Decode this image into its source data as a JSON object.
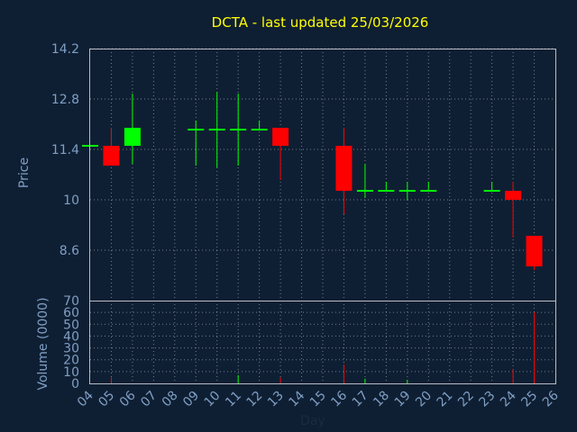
{
  "chart_data": {
    "type": "candlestick",
    "title": "DCTA - last updated 25/03/2026",
    "xlabel": "Day",
    "days": [
      "04",
      "05",
      "06",
      "07",
      "08",
      "09",
      "10",
      "11",
      "12",
      "13",
      "14",
      "15",
      "16",
      "17",
      "18",
      "19",
      "20",
      "21",
      "22",
      "23",
      "24",
      "25",
      "26"
    ],
    "price": {
      "ylabel": "Price",
      "ylim": [
        7.2,
        14.2
      ],
      "ticks": [
        14.2,
        12.8,
        11.4,
        10,
        8.6
      ],
      "tick_labels": [
        "14.2",
        "12.8",
        "11.4",
        "10",
        "8.6"
      ],
      "candles": [
        {
          "day": "04",
          "open": 11.5,
          "high": 11.5,
          "low": 11.5,
          "close": 11.5
        },
        {
          "day": "05",
          "open": 11.5,
          "high": 12.0,
          "low": 10.95,
          "close": 10.95
        },
        {
          "day": "06",
          "open": 11.5,
          "high": 12.95,
          "low": 11.0,
          "close": 12.0
        },
        {
          "day": "09",
          "open": 11.95,
          "high": 12.2,
          "low": 10.95,
          "close": 11.95
        },
        {
          "day": "10",
          "open": 11.95,
          "high": 13.0,
          "low": 10.9,
          "close": 11.95
        },
        {
          "day": "11",
          "open": 11.95,
          "high": 12.95,
          "low": 10.95,
          "close": 11.95
        },
        {
          "day": "12",
          "open": 11.95,
          "high": 12.2,
          "low": 11.95,
          "close": 11.95
        },
        {
          "day": "13",
          "open": 12.0,
          "high": 12.0,
          "low": 10.55,
          "close": 11.5
        },
        {
          "day": "16",
          "open": 11.5,
          "high": 12.0,
          "low": 9.6,
          "close": 10.25
        },
        {
          "day": "17",
          "open": 10.25,
          "high": 11.0,
          "low": 10.05,
          "close": 10.25
        },
        {
          "day": "18",
          "open": 10.25,
          "high": 10.5,
          "low": 10.25,
          "close": 10.25
        },
        {
          "day": "19",
          "open": 10.25,
          "high": 10.5,
          "low": 10.0,
          "close": 10.25
        },
        {
          "day": "20",
          "open": 10.25,
          "high": 10.5,
          "low": 10.25,
          "close": 10.25
        },
        {
          "day": "23",
          "open": 10.25,
          "high": 10.5,
          "low": 10.25,
          "close": 10.25
        },
        {
          "day": "24",
          "open": 10.25,
          "high": 10.5,
          "low": 8.95,
          "close": 10.0
        },
        {
          "day": "25",
          "open": 9.0,
          "high": 9.0,
          "low": 8.05,
          "close": 8.15
        }
      ]
    },
    "volume": {
      "ylabel": "Volume (0000)",
      "ylim": [
        0,
        70
      ],
      "ticks": [
        0,
        10,
        20,
        30,
        40,
        50,
        60,
        70
      ],
      "tick_labels": [
        "0",
        "10",
        "20",
        "30",
        "40",
        "50",
        "60",
        "70"
      ],
      "bars": [
        {
          "day": "05",
          "value": 5,
          "direction": "down"
        },
        {
          "day": "11",
          "value": 7,
          "direction": "up"
        },
        {
          "day": "13",
          "value": 5,
          "direction": "down"
        },
        {
          "day": "16",
          "value": 16,
          "direction": "down"
        },
        {
          "day": "17",
          "value": 4,
          "direction": "up"
        },
        {
          "day": "19",
          "value": 3,
          "direction": "up"
        },
        {
          "day": "24",
          "value": 12,
          "direction": "down"
        },
        {
          "day": "25",
          "value": 60,
          "direction": "down"
        }
      ]
    },
    "colors": {
      "background": "#0f1f33",
      "up": "#00ff00",
      "down": "#ff0000",
      "title": "#ffff00",
      "axis_text": "#7f9fc4",
      "xlabel_text": "#1b2a3f"
    },
    "grid": true
  }
}
